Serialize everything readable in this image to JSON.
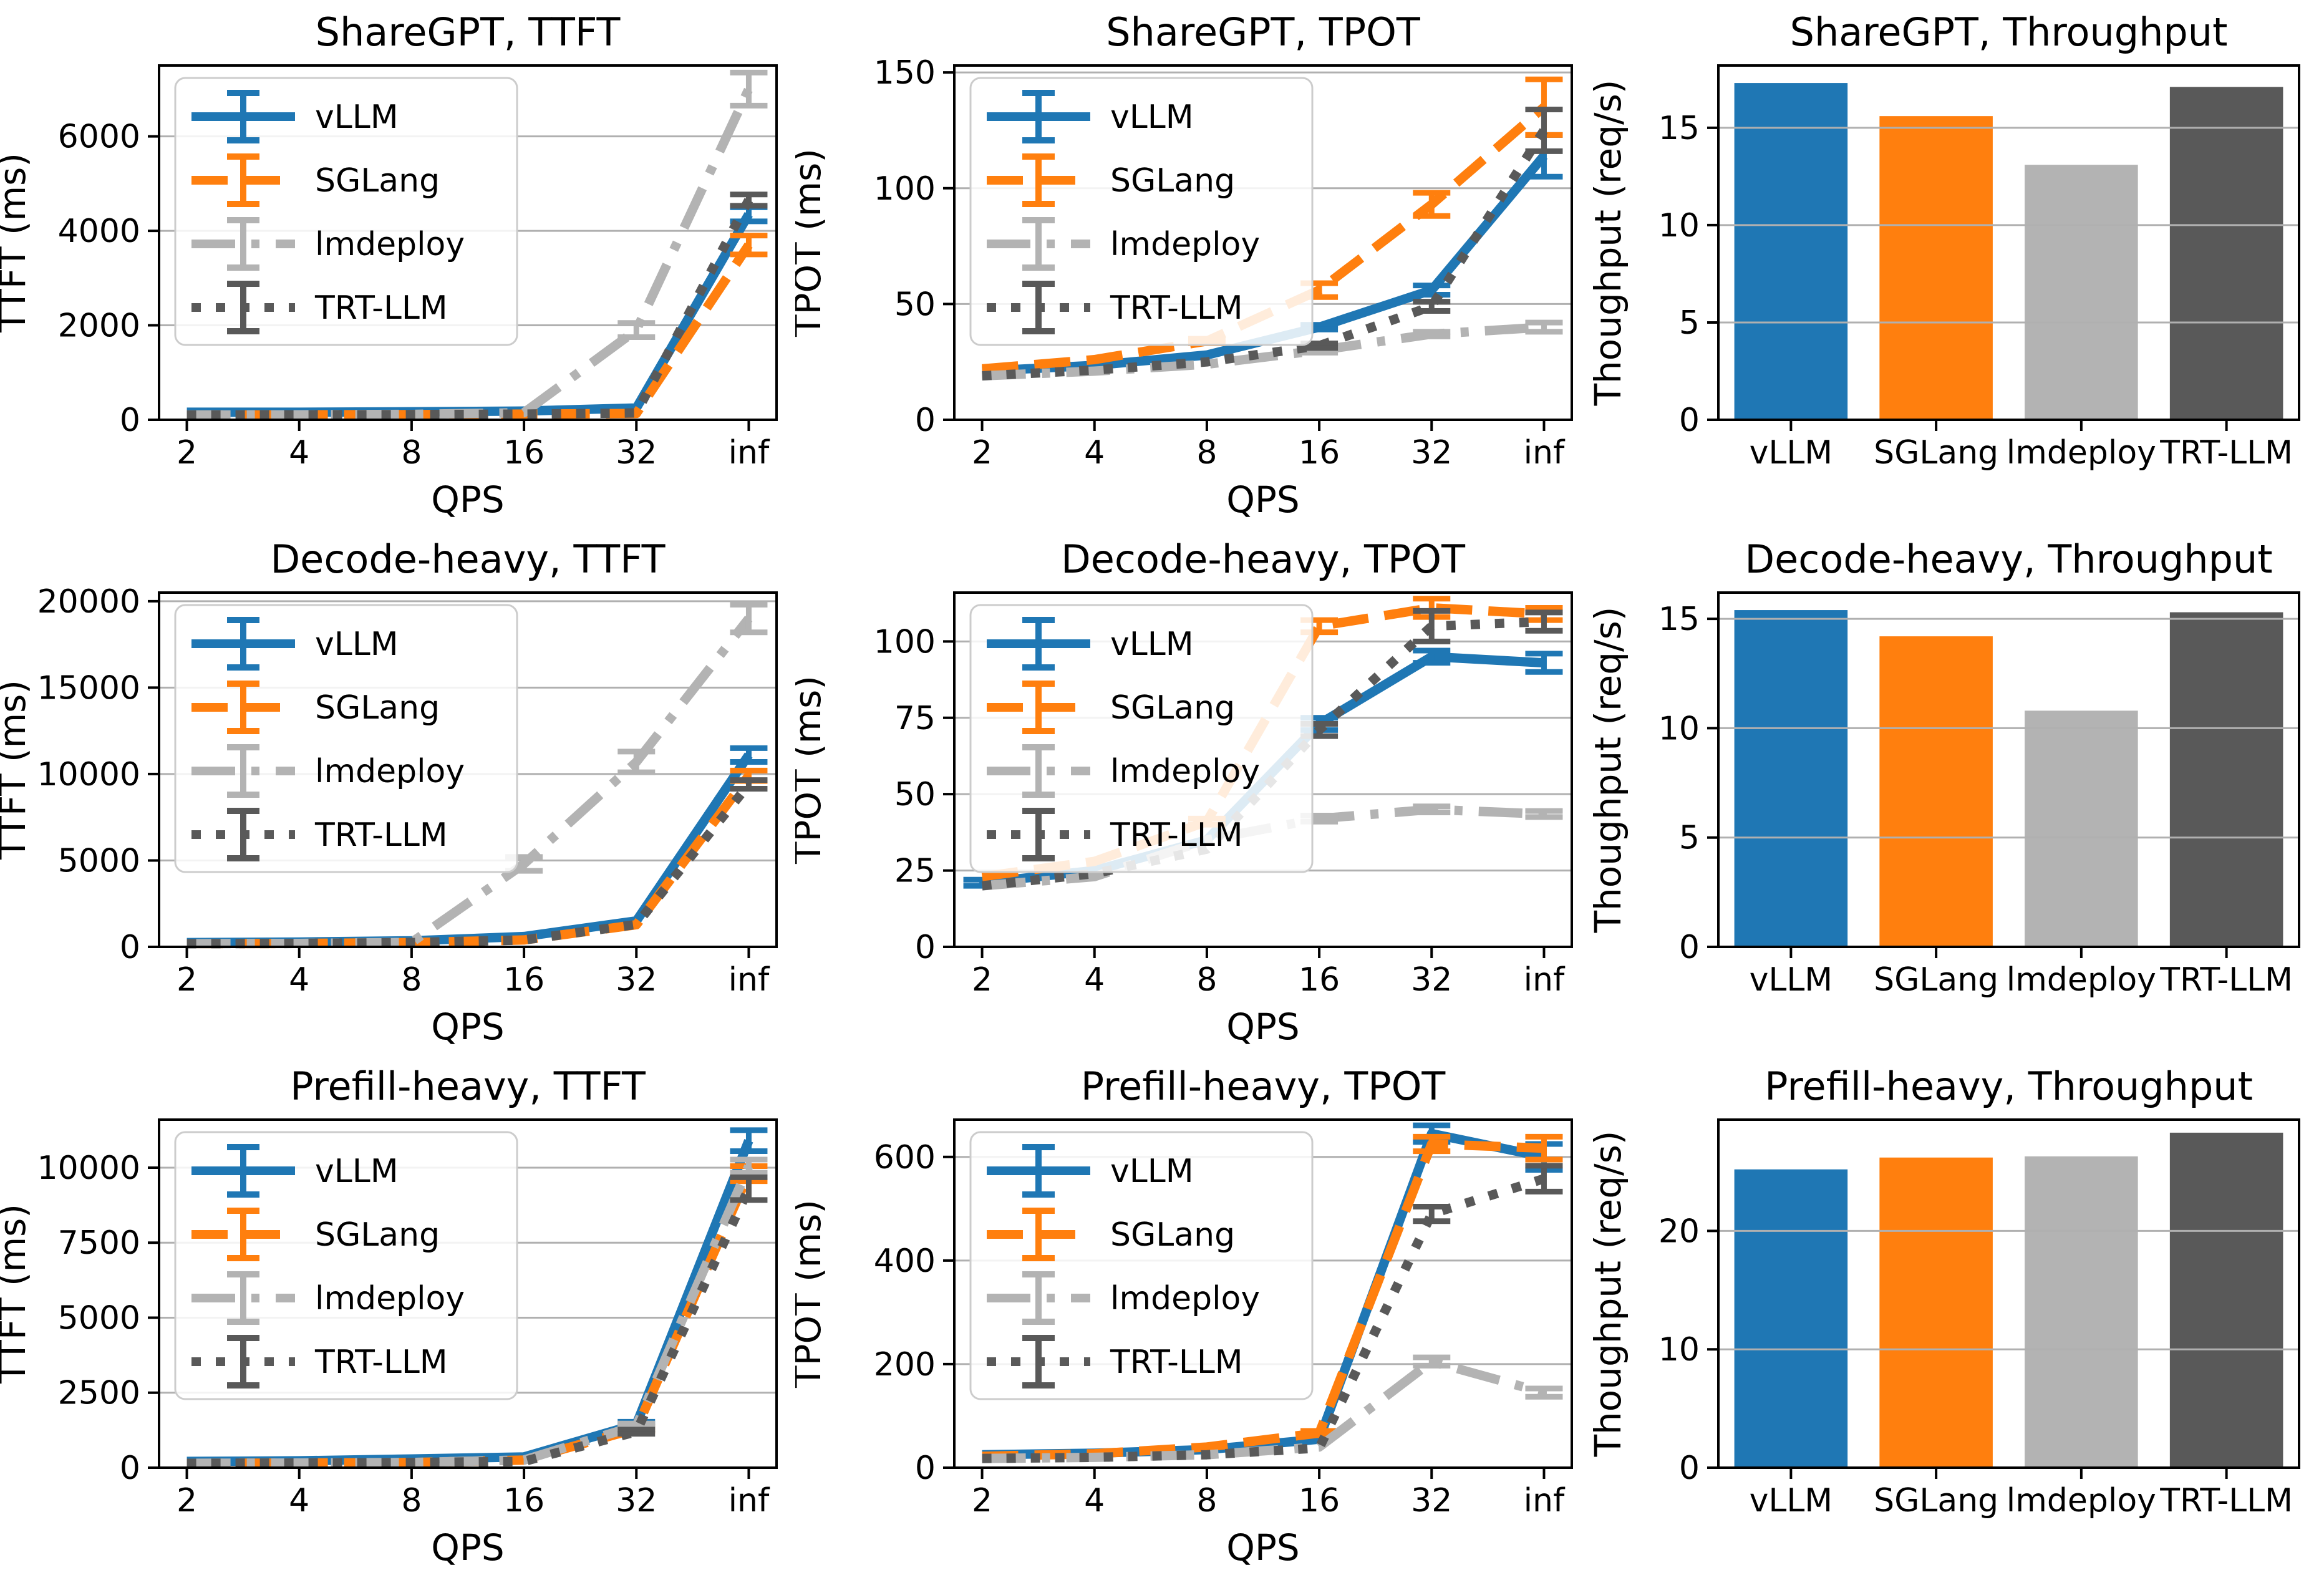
{
  "figure": {
    "background": "#ffffff",
    "text_color": "#000000",
    "grid_color": "#b0b0b0",
    "spine_color": "#000000",
    "legend_edge_color": "#cccccc",
    "frameworks": [
      "vLLM",
      "SGLang",
      "lmdeploy",
      "TRT-LLM"
    ],
    "colors": {
      "vLLM": "#1f77b4",
      "SGLang": "#ff7f0e",
      "lmdeploy": "#b3b3b3",
      "TRT-LLM": "#595959"
    },
    "dash_styles": {
      "vLLM": "solid",
      "SGLang": "dashed",
      "lmdeploy": "dashdot",
      "TRT-LLM": "dotted"
    }
  },
  "chart_data": [
    {
      "type": "line",
      "title": "ShareGPT, TTFT",
      "xlabel": "QPS",
      "ylabel": "TTFT (ms)",
      "x_categories": [
        "2",
        "4",
        "8",
        "16",
        "32",
        "inf"
      ],
      "yticks": [
        0,
        2000,
        4000,
        6000
      ],
      "ylim": [
        0,
        7500
      ],
      "grid": true,
      "legend": true,
      "legend_position": "upper-left",
      "series": [
        {
          "name": "vLLM",
          "values": [
            160,
            160,
            170,
            185,
            250,
            4350
          ],
          "err": [
            0,
            0,
            0,
            0,
            30,
            150
          ]
        },
        {
          "name": "SGLang",
          "values": [
            100,
            105,
            110,
            120,
            135,
            3700
          ],
          "err": [
            0,
            0,
            0,
            0,
            20,
            200
          ]
        },
        {
          "name": "lmdeploy",
          "values": [
            100,
            105,
            115,
            150,
            1900,
            7000
          ],
          "err": [
            0,
            0,
            0,
            30,
            150,
            350
          ]
        },
        {
          "name": "TRT-LLM",
          "values": [
            100,
            105,
            110,
            120,
            145,
            4650
          ],
          "err": [
            0,
            0,
            0,
            0,
            20,
            120
          ]
        }
      ]
    },
    {
      "type": "line",
      "title": "ShareGPT, TPOT",
      "xlabel": "QPS",
      "ylabel": "TPOT (ms)",
      "x_categories": [
        "2",
        "4",
        "8",
        "16",
        "32",
        "inf"
      ],
      "yticks": [
        0,
        50,
        100,
        150
      ],
      "ylim": [
        0,
        153
      ],
      "grid": true,
      "legend": true,
      "legend_position": "upper-left",
      "series": [
        {
          "name": "vLLM",
          "values": [
            21,
            23.5,
            28,
            40,
            56,
            114
          ],
          "err": [
            0.5,
            0.5,
            0.5,
            1,
            2,
            9
          ]
        },
        {
          "name": "SGLang",
          "values": [
            22,
            26,
            34,
            56,
            93,
            135
          ],
          "err": [
            0.5,
            0.5,
            1,
            3,
            5,
            12
          ]
        },
        {
          "name": "lmdeploy",
          "values": [
            19,
            21,
            24,
            30,
            37,
            40
          ],
          "err": [
            0.3,
            0.3,
            0.5,
            1,
            1,
            2
          ]
        },
        {
          "name": "TRT-LLM",
          "values": [
            19,
            21.5,
            25,
            32,
            49,
            125
          ],
          "err": [
            0.3,
            0.5,
            0.5,
            1,
            2,
            9
          ]
        }
      ]
    },
    {
      "type": "bar",
      "title": "ShareGPT, Throughput",
      "ylabel": "Thoughput (req/s)",
      "categories": [
        "vLLM",
        "SGLang",
        "lmdeploy",
        "TRT-LLM"
      ],
      "values": [
        17.3,
        15.6,
        13.1,
        17.1
      ],
      "yticks": [
        0,
        5,
        10,
        15
      ],
      "ylim": [
        0,
        18.2
      ],
      "grid": true
    },
    {
      "type": "line",
      "title": "Decode-heavy, TTFT",
      "xlabel": "QPS",
      "ylabel": "TTFT (ms)",
      "x_categories": [
        "2",
        "4",
        "8",
        "16",
        "32",
        "inf"
      ],
      "yticks": [
        0,
        5000,
        10000,
        15000,
        20000
      ],
      "ylim": [
        0,
        20500
      ],
      "grid": true,
      "legend": true,
      "legend_position": "upper-left",
      "series": [
        {
          "name": "vLLM",
          "values": [
            250,
            280,
            350,
            600,
            1500,
            11100
          ],
          "err": [
            0,
            0,
            0,
            50,
            80,
            400
          ]
        },
        {
          "name": "SGLang",
          "values": [
            180,
            200,
            250,
            400,
            1280,
            9900
          ],
          "err": [
            0,
            0,
            0,
            30,
            60,
            300
          ]
        },
        {
          "name": "lmdeploy",
          "values": [
            180,
            200,
            260,
            4800,
            10700,
            19000
          ],
          "err": [
            0,
            0,
            30,
            400,
            600,
            800
          ]
        },
        {
          "name": "TRT-LLM",
          "values": [
            180,
            200,
            250,
            400,
            1300,
            9400
          ],
          "err": [
            0,
            0,
            0,
            30,
            60,
            250
          ]
        }
      ]
    },
    {
      "type": "line",
      "title": "Decode-heavy, TPOT",
      "xlabel": "QPS",
      "ylabel": "TPOT (ms)",
      "x_categories": [
        "2",
        "4",
        "8",
        "16",
        "32",
        "inf"
      ],
      "yticks": [
        0,
        25,
        50,
        75,
        100
      ],
      "ylim": [
        0,
        116
      ],
      "grid": true,
      "legend": true,
      "legend_position": "upper-left",
      "series": [
        {
          "name": "vLLM",
          "values": [
            21,
            25,
            35,
            73,
            95,
            93
          ],
          "err": [
            1,
            0.5,
            0.5,
            2,
            2,
            3
          ]
        },
        {
          "name": "SGLang",
          "values": [
            23,
            28,
            41,
            105,
            111,
            109
          ],
          "err": [
            0.5,
            0.5,
            1,
            2,
            3,
            2
          ]
        },
        {
          "name": "lmdeploy",
          "values": [
            20,
            23,
            35,
            42,
            45,
            43.5
          ],
          "err": [
            0.3,
            0.3,
            0.5,
            1,
            1,
            1
          ]
        },
        {
          "name": "TRT-LLM",
          "values": [
            20,
            24,
            32,
            71,
            105,
            106.5
          ],
          "err": [
            0.3,
            0.5,
            0.5,
            2,
            5,
            3
          ]
        }
      ]
    },
    {
      "type": "bar",
      "title": "Decode-heavy, Throughput",
      "ylabel": "Thoughput (req/s)",
      "categories": [
        "vLLM",
        "SGLang",
        "lmdeploy",
        "TRT-LLM"
      ],
      "values": [
        15.4,
        14.2,
        10.8,
        15.3
      ],
      "yticks": [
        0,
        5,
        10,
        15
      ],
      "ylim": [
        0,
        16.2
      ],
      "grid": true
    },
    {
      "type": "line",
      "title": "Prefill-heavy, TTFT",
      "xlabel": "QPS",
      "ylabel": "TTFT (ms)",
      "x_categories": [
        "2",
        "4",
        "8",
        "16",
        "32",
        "inf"
      ],
      "yticks": [
        0,
        2500,
        5000,
        7500,
        10000
      ],
      "ylim": [
        0,
        11600
      ],
      "grid": true,
      "legend": true,
      "legend_position": "upper-left",
      "series": [
        {
          "name": "vLLM",
          "values": [
            210,
            230,
            290,
            360,
            1450,
            10900
          ],
          "err": [
            0,
            0,
            0,
            30,
            80,
            350
          ]
        },
        {
          "name": "SGLang",
          "values": [
            145,
            155,
            175,
            255,
            1300,
            9800
          ],
          "err": [
            0,
            0,
            0,
            25,
            70,
            250
          ]
        },
        {
          "name": "lmdeploy",
          "values": [
            145,
            155,
            175,
            255,
            1400,
            10050
          ],
          "err": [
            0,
            0,
            0,
            25,
            70,
            220
          ]
        },
        {
          "name": "TRT-LLM",
          "values": [
            145,
            155,
            175,
            210,
            1200,
            9300
          ],
          "err": [
            0,
            0,
            0,
            25,
            70,
            380
          ]
        }
      ]
    },
    {
      "type": "line",
      "title": "Prefill-heavy, TPOT",
      "xlabel": "QPS",
      "ylabel": "TPOT (ms)",
      "x_categories": [
        "2",
        "4",
        "8",
        "16",
        "32",
        "inf"
      ],
      "yticks": [
        0,
        200,
        400,
        600
      ],
      "ylim": [
        0,
        672
      ],
      "grid": true,
      "legend": true,
      "legend_position": "upper-left",
      "series": [
        {
          "name": "vLLM",
          "values": [
            25,
            28,
            35,
            55,
            645,
            600
          ],
          "err": [
            2,
            2,
            2,
            3,
            16,
            25
          ]
        },
        {
          "name": "SGLang",
          "values": [
            22,
            27,
            40,
            67,
            625,
            617
          ],
          "err": [
            2,
            2,
            2,
            4,
            14,
            22
          ]
        },
        {
          "name": "lmdeploy",
          "values": [
            18,
            20,
            25,
            40,
            205,
            145
          ],
          "err": [
            1,
            1,
            1,
            2,
            8,
            8
          ]
        },
        {
          "name": "TRT-LLM",
          "values": [
            18,
            20,
            25,
            38,
            490,
            558
          ],
          "err": [
            1,
            1,
            1,
            2,
            14,
            25
          ]
        }
      ]
    },
    {
      "type": "bar",
      "title": "Prefill-heavy, Throughput",
      "ylabel": "Thoughput (req/s)",
      "categories": [
        "vLLM",
        "SGLang",
        "lmdeploy",
        "TRT-LLM"
      ],
      "values": [
        25.2,
        26.2,
        26.3,
        28.3
      ],
      "yticks": [
        0,
        10,
        20
      ],
      "ylim": [
        0,
        29.4
      ],
      "grid": true
    }
  ]
}
